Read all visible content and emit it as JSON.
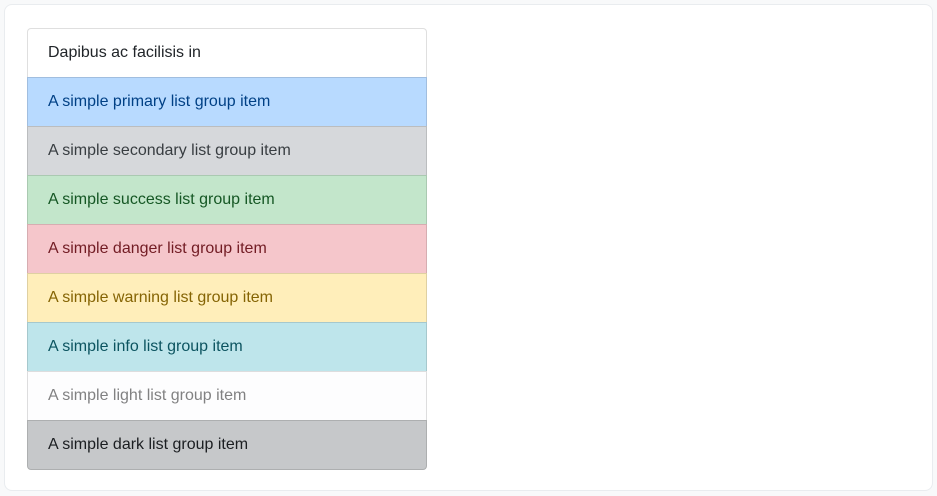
{
  "page": {
    "background_color": "#f8f9fa",
    "card_background_color": "#ffffff",
    "card_border_color": "#e9ecef"
  },
  "list_group": {
    "item_border_color": "rgba(0,0,0,0.125)",
    "items": [
      {
        "label": "Dapibus ac facilisis in",
        "variant": "default",
        "bg": "#ffffff",
        "color": "#212529"
      },
      {
        "label": "A simple primary list group item",
        "variant": "primary",
        "bg": "#b8daff",
        "color": "#004085"
      },
      {
        "label": "A simple secondary list group item",
        "variant": "secondary",
        "bg": "#d6d8db",
        "color": "#383d41"
      },
      {
        "label": "A simple success list group item",
        "variant": "success",
        "bg": "#c3e6cb",
        "color": "#155724"
      },
      {
        "label": "A simple danger list group item",
        "variant": "danger",
        "bg": "#f5c6cb",
        "color": "#721c24"
      },
      {
        "label": "A simple warning list group item",
        "variant": "warning",
        "bg": "#ffeeba",
        "color": "#856404"
      },
      {
        "label": "A simple info list group item",
        "variant": "info",
        "bg": "#bee5eb",
        "color": "#0c5460"
      },
      {
        "label": "A simple light list group item",
        "variant": "light",
        "bg": "#fdfdfe",
        "color": "#818182"
      },
      {
        "label": "A simple dark list group item",
        "variant": "dark",
        "bg": "#c6c8ca",
        "color": "#1b1e21"
      }
    ]
  }
}
